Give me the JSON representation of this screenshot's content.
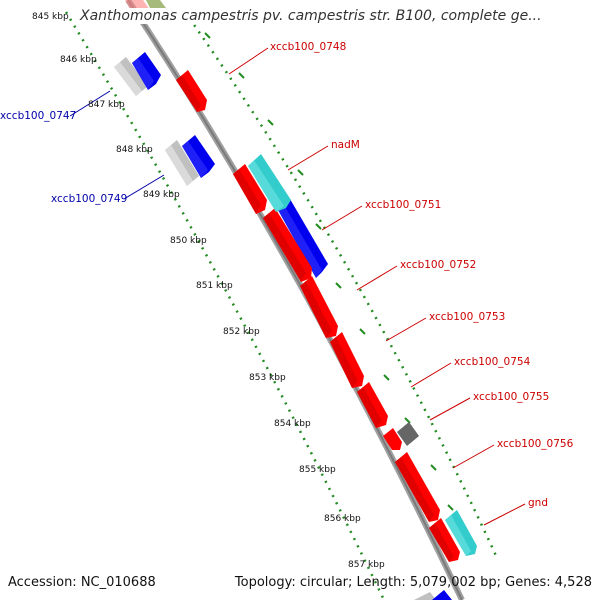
{
  "title": "Xanthomonas campestris pv. campestris str. B100, complete ge...",
  "footer": {
    "accession_text": "Accession: NC_010688",
    "summary_text": "Topology: circular; Length: 5,079,002 bp; Genes: 4,528"
  },
  "colors": {
    "forward_gene": "#ff0000",
    "reverse_gene": "#0000ee",
    "label_forward": "#cc0000",
    "label_reverse": "#0000aa",
    "rna_gene": "#33cccc",
    "other_gene": "#555555",
    "tick": "#228b22",
    "backbone": "#808080"
  },
  "scale_labels": [
    "845 kbp",
    "846 kbp",
    "847 kbp",
    "848 kbp",
    "849 kbp",
    "850 kbp",
    "851 kbp",
    "852 kbp",
    "853 kbp",
    "854 kbp",
    "855 kbp",
    "856 kbp",
    "857 kbp"
  ],
  "gene_labels": [
    {
      "text": "xccb100_0748",
      "strand": "forward"
    },
    {
      "text": "nadM",
      "strand": "forward"
    },
    {
      "text": "xccb100_0751",
      "strand": "forward"
    },
    {
      "text": "xccb100_0752",
      "strand": "forward"
    },
    {
      "text": "xccb100_0753",
      "strand": "forward"
    },
    {
      "text": "xccb100_0754",
      "strand": "forward"
    },
    {
      "text": "xccb100_0755",
      "strand": "forward"
    },
    {
      "text": "xccb100_0756",
      "strand": "forward"
    },
    {
      "text": "gnd",
      "strand": "forward"
    },
    {
      "text": "xccb100_0747",
      "strand": "reverse"
    },
    {
      "text": "xccb100_0749",
      "strand": "reverse"
    }
  ]
}
